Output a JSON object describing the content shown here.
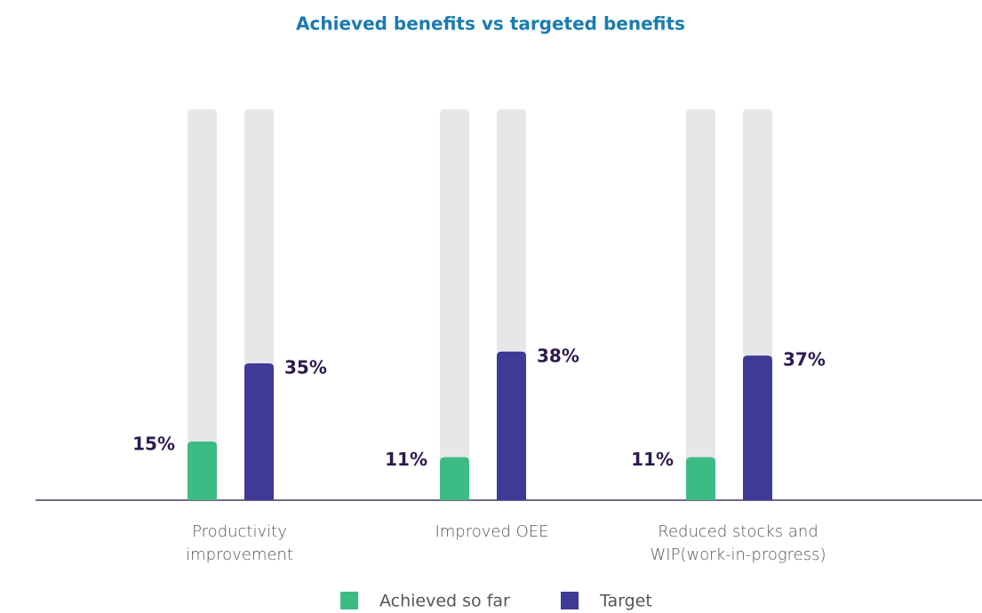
{
  "chart_data": {
    "type": "bar",
    "title": "Achieved benefits vs targeted benefits",
    "categories": [
      "Productivity improvement",
      "Improved OEE",
      "Reduced stocks and WIP(work-in-progress)"
    ],
    "series": [
      {
        "name": "Achieved so far",
        "color": "#3dbb84",
        "values": [
          15,
          11,
          11
        ],
        "value_labels": [
          "15%",
          "11%",
          "11%"
        ]
      },
      {
        "name": "Target",
        "color": "#3e3a96",
        "values": [
          35,
          38,
          37
        ],
        "value_labels": [
          "35%",
          "38%",
          "37%"
        ]
      }
    ],
    "ylim": [
      0,
      100
    ],
    "track_color": "#e6e7e9",
    "legend": "bottom"
  }
}
